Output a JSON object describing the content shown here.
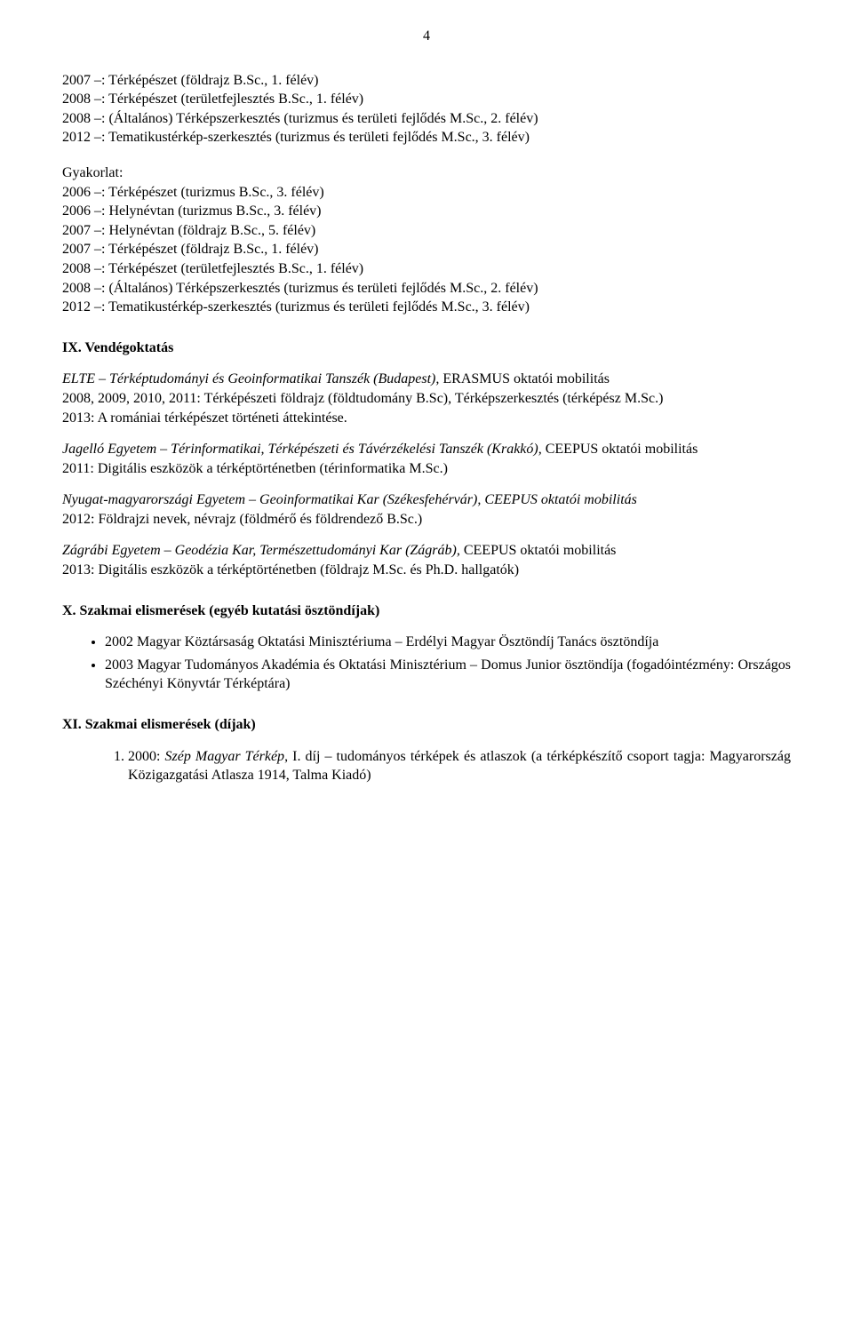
{
  "page_number": "4",
  "top_block": [
    "2007 –: Térképészet (földrajz B.Sc., 1. félév)",
    "2008 –: Térképészet (területfejlesztés B.Sc., 1. félév)",
    "2008 –: (Általános) Térképszerkesztés (turizmus és területi fejlődés M.Sc., 2. félév)",
    "2012 –: Tematikustérkép-szerkesztés (turizmus és területi fejlődés M.Sc., 3. félév)"
  ],
  "gyakorlat_label": "Gyakorlat:",
  "gyakorlat_block": [
    "2006 –: Térképészet (turizmus B.Sc., 3. félév)",
    "2006 –: Helynévtan (turizmus B.Sc., 3. félév)",
    "2007 –: Helynévtan (földrajz B.Sc., 5. félév)",
    "2007 –: Térképészet (földrajz B.Sc., 1. félév)",
    "2008 –: Térképészet (területfejlesztés B.Sc., 1. félév)",
    "2008 –: (Általános) Térképszerkesztés (turizmus és területi fejlődés M.Sc., 2. félév)",
    "2012 –: Tematikustérkép-szerkesztés (turizmus és területi fejlődés M.Sc., 3. félév)"
  ],
  "ix": {
    "title": "IX. Vendégoktatás",
    "p1": {
      "italic": "ELTE – Térképtudományi és Geoinformatikai Tanszék (Budapest),",
      "rest": " ERASMUS oktatói mobilitás"
    },
    "p1b": "2008, 2009, 2010, 2011: Térképészeti földrajz (földtudomány B.Sc), Térképszerkesztés (térképész M.Sc.)",
    "p1c": "2013: A romániai térképészet történeti áttekintése.",
    "p2": {
      "italic": "Jagelló Egyetem – Térinformatikai, Térképészeti és Távérzékelési Tanszék (Krakkó),",
      "rest": " CEEPUS oktatói mobilitás"
    },
    "p2b": "2011: Digitális eszközök a térképtörténetben (térinformatika M.Sc.)",
    "p3": {
      "italic": "Nyugat-magyarországi Egyetem – Geoinformatikai Kar (Székesfehérvár), CEEPUS oktatói mobilitás",
      "rest": ""
    },
    "p3b": "2012: Földrajzi nevek, névrajz (földmérő és földrendező B.Sc.)",
    "p4": {
      "italic": "Zágrábi Egyetem – Geodézia Kar, Természettudományi Kar (Zágráb),",
      "rest": " CEEPUS oktatói mobilitás"
    },
    "p4b": "2013: Digitális eszközök a térképtörténetben (földrajz M.Sc. és Ph.D. hallgatók)"
  },
  "x": {
    "title": "X. Szakmai elismerések (egyéb kutatási ösztöndíjak)",
    "items": [
      "2002 Magyar Köztársaság Oktatási Minisztériuma – Erdélyi Magyar Ösztöndíj Tanács ösztöndíja",
      "2003 Magyar Tudományos Akadémia és Oktatási Minisztérium – Domus Junior ösztöndíja (fogadóintézmény: Országos Széchényi Könyvtár Térképtára)"
    ]
  },
  "xi": {
    "title": "XI. Szakmai elismerések (díjak)",
    "item1_prefix": "2000: ",
    "item1_italic": "Szép Magyar Térkép",
    "item1_rest": ", I. díj – tudományos térképek és atlaszok (a térképkészítő csoport tagja: Magyarország Közigazgatási Atlasza 1914, Talma Kiadó)"
  }
}
